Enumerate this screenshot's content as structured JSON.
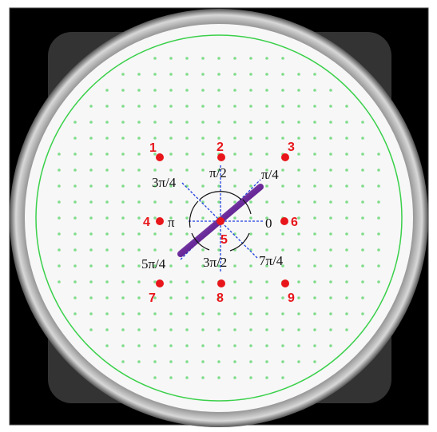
{
  "points": [
    {
      "label": "1"
    },
    {
      "label": "2"
    },
    {
      "label": "3"
    },
    {
      "label": "4"
    },
    {
      "label": "5"
    },
    {
      "label": "6"
    },
    {
      "label": "7"
    },
    {
      "label": "8"
    },
    {
      "label": "9"
    }
  ],
  "angles": [
    {
      "label": "π/2"
    },
    {
      "label": "3π/4"
    },
    {
      "label": "π/4"
    },
    {
      "label": "π"
    },
    {
      "label": "0"
    },
    {
      "label": "5π/4"
    },
    {
      "label": "3π/2"
    },
    {
      "label": "7π/4"
    }
  ]
}
